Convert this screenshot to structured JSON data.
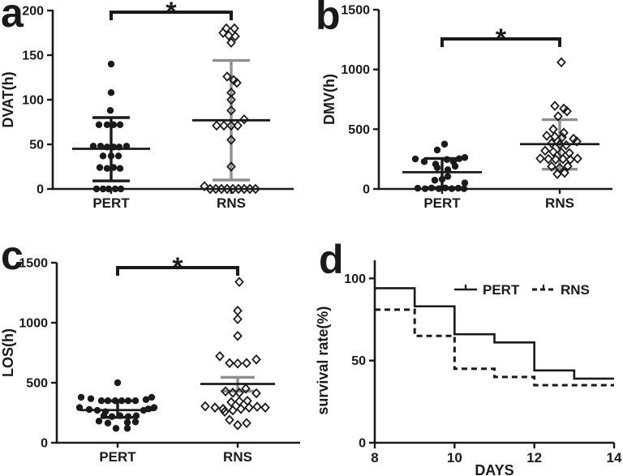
{
  "figure": {
    "background": "#ffffff",
    "ink": "#1a1a1a",
    "muted": "#8f8f8f"
  },
  "chart_data": [
    {
      "letter": "a",
      "type": "scatter",
      "ylabel": "DVAT(h)",
      "ylim": [
        0,
        200
      ],
      "yticks": [
        0,
        50,
        100,
        150,
        200
      ],
      "significance": "*",
      "legend_position": "none",
      "grid": false,
      "groups": [
        {
          "name": "PERT",
          "marker": "filled-circle",
          "mean": 45,
          "err_low": 9,
          "err_high": 80,
          "err_color": "ink",
          "points": [
            [
              0,
              140
            ],
            [
              0,
              108
            ],
            [
              -1,
              88
            ],
            [
              -15,
              72
            ],
            [
              -5,
              72
            ],
            [
              3,
              72
            ],
            [
              11,
              72
            ],
            [
              -22,
              48
            ],
            [
              -13,
              48
            ],
            [
              -5,
              47
            ],
            [
              3,
              47
            ],
            [
              10,
              47
            ],
            [
              19,
              48
            ],
            [
              -10,
              37
            ],
            [
              0,
              37
            ],
            [
              9,
              37
            ],
            [
              -14,
              24
            ],
            [
              -5,
              23
            ],
            [
              3,
              24
            ],
            [
              11,
              23
            ],
            [
              -18,
              0
            ],
            [
              -10,
              0
            ],
            [
              -3,
              0
            ],
            [
              5,
              0
            ],
            [
              12,
              0
            ]
          ]
        },
        {
          "name": "RNS",
          "marker": "open-diamond",
          "mean": 77,
          "err_low": 10,
          "err_high": 144,
          "err_color": "muted",
          "points": [
            [
              -6,
              180
            ],
            [
              4,
              180
            ],
            [
              -10,
              175
            ],
            [
              -3,
              172
            ],
            [
              5,
              171
            ],
            [
              0,
              164
            ],
            [
              -5,
              126
            ],
            [
              3,
              122
            ],
            [
              7,
              119
            ],
            [
              0,
              108
            ],
            [
              0,
              100
            ],
            [
              0,
              88
            ],
            [
              16,
              78
            ],
            [
              -18,
              71
            ],
            [
              -9,
              71
            ],
            [
              0,
              71
            ],
            [
              8,
              71
            ],
            [
              0,
              55
            ],
            [
              0,
              25
            ],
            [
              -33,
              3
            ],
            [
              -26,
              0
            ],
            [
              -19,
              0
            ],
            [
              -12,
              0
            ],
            [
              -5,
              0
            ],
            [
              2,
              0
            ],
            [
              9,
              0
            ],
            [
              16,
              0
            ],
            [
              23,
              0
            ],
            [
              30,
              0
            ]
          ]
        }
      ]
    },
    {
      "letter": "b",
      "type": "scatter",
      "ylabel": "DMV(h)",
      "ylim": [
        0,
        1500
      ],
      "yticks": [
        0,
        500,
        1000,
        1500
      ],
      "significance": "*",
      "legend_position": "none",
      "grid": false,
      "groups": [
        {
          "name": "PERT",
          "marker": "filled-circle",
          "mean": 140,
          "err_low": 10,
          "err_high": 255,
          "err_color": "ink",
          "points": [
            [
              3,
              375
            ],
            [
              -6,
              326
            ],
            [
              -33,
              251
            ],
            [
              -22,
              229
            ],
            [
              -8,
              208
            ],
            [
              6,
              246
            ],
            [
              14,
              229
            ],
            [
              21,
              253
            ],
            [
              28,
              263
            ],
            [
              -6,
              178
            ],
            [
              7,
              161
            ],
            [
              16,
              190
            ],
            [
              -9,
              73
            ],
            [
              0,
              81
            ],
            [
              7,
              104
            ],
            [
              28,
              50
            ],
            [
              -30,
              6
            ],
            [
              -21,
              2
            ],
            [
              -13,
              8
            ],
            [
              -4,
              2
            ],
            [
              4,
              8
            ],
            [
              12,
              2
            ],
            [
              20,
              6
            ],
            [
              27,
              2
            ]
          ]
        },
        {
          "name": "RNS",
          "marker": "open-diamond",
          "mean": 375,
          "err_low": 165,
          "err_high": 580,
          "err_color": "muted",
          "points": [
            [
              2,
              1060
            ],
            [
              -6,
              695
            ],
            [
              5,
              672
            ],
            [
              9,
              650
            ],
            [
              -2,
              608
            ],
            [
              -8,
              500
            ],
            [
              5,
              470
            ],
            [
              -16,
              445
            ],
            [
              -6,
              438
            ],
            [
              3,
              432
            ],
            [
              17,
              420
            ],
            [
              21,
              398
            ],
            [
              -10,
              382
            ],
            [
              0,
              372
            ],
            [
              8,
              366
            ],
            [
              -18,
              320
            ],
            [
              -8,
              310
            ],
            [
              2,
              305
            ],
            [
              12,
              300
            ],
            [
              -24,
              255
            ],
            [
              -14,
              250
            ],
            [
              -5,
              247
            ],
            [
              4,
              250
            ],
            [
              13,
              246
            ],
            [
              22,
              254
            ],
            [
              -10,
              188
            ],
            [
              0,
              176
            ],
            [
              10,
              190
            ],
            [
              -3,
              125
            ],
            [
              6,
              135
            ]
          ]
        }
      ]
    },
    {
      "letter": "c",
      "type": "scatter",
      "ylabel": "LOS(h)",
      "ylim": [
        0,
        1500
      ],
      "yticks": [
        0,
        500,
        1000,
        1500
      ],
      "significance": "*",
      "legend_position": "none",
      "grid": false,
      "groups": [
        {
          "name": "PERT",
          "marker": "filled-circle",
          "mean": 272,
          "err_low": 212,
          "err_high": 350,
          "err_color": "ink",
          "points": [
            [
              0,
              500
            ],
            [
              -45,
              379
            ],
            [
              -33,
              367
            ],
            [
              42,
              379
            ],
            [
              35,
              360
            ],
            [
              -20,
              350
            ],
            [
              -12,
              350
            ],
            [
              -3,
              350
            ],
            [
              5,
              350
            ],
            [
              13,
              350
            ],
            [
              22,
              350
            ],
            [
              -47,
              293
            ],
            [
              -35,
              277
            ],
            [
              45,
              293
            ],
            [
              38,
              282
            ],
            [
              -25,
              270
            ],
            [
              -15,
              259
            ],
            [
              32,
              270
            ],
            [
              -17,
              225
            ],
            [
              -7,
              218
            ],
            [
              3,
              225
            ],
            [
              13,
              218
            ],
            [
              23,
              225
            ],
            [
              -23,
              180
            ],
            [
              -12,
              164
            ],
            [
              12,
              169
            ],
            [
              22,
              174
            ],
            [
              -2,
              120
            ],
            [
              12,
              120
            ]
          ]
        },
        {
          "name": "RNS",
          "marker": "open-diamond",
          "mean": 490,
          "err_low": 430,
          "err_high": 545,
          "err_color": "muted",
          "points": [
            [
              2,
              1340
            ],
            [
              0,
              1100
            ],
            [
              0,
              1030
            ],
            [
              0,
              890
            ],
            [
              -22,
              721
            ],
            [
              -10,
              664
            ],
            [
              0,
              660
            ],
            [
              11,
              664
            ],
            [
              23,
              694
            ],
            [
              -15,
              428
            ],
            [
              -6,
              417
            ],
            [
              2,
              417
            ],
            [
              10,
              451
            ],
            [
              23,
              412
            ],
            [
              -40,
              304
            ],
            [
              -28,
              293
            ],
            [
              -18,
              282
            ],
            [
              -8,
              338
            ],
            [
              2,
              345
            ],
            [
              12,
              349
            ],
            [
              -16,
              259
            ],
            [
              -6,
              270
            ],
            [
              4,
              282
            ],
            [
              14,
              293
            ],
            [
              24,
              300
            ],
            [
              34,
              293
            ],
            [
              -10,
              191
            ],
            [
              0,
              147
            ],
            [
              11,
              164
            ]
          ]
        }
      ]
    },
    {
      "letter": "d",
      "type": "step-line",
      "xlabel": "DAYS",
      "ylabel": "survival rate(%)",
      "xlim": [
        8,
        14
      ],
      "xticks": [
        8,
        10,
        12,
        14
      ],
      "ylim": [
        0,
        100
      ],
      "yticks": [
        0,
        50,
        100
      ],
      "legend_position": "top-inside",
      "grid": false,
      "series": [
        {
          "name": "PERT",
          "line": "solid",
          "steps": [
            [
              8,
              94
            ],
            [
              9,
              83
            ],
            [
              10,
              66
            ],
            [
              11,
              61
            ],
            [
              12,
              44
            ],
            [
              13,
              39
            ],
            [
              14,
              39
            ]
          ]
        },
        {
          "name": "RNS",
          "line": "dashed",
          "steps": [
            [
              8,
              81
            ],
            [
              9,
              65
            ],
            [
              10,
              45
            ],
            [
              11,
              40
            ],
            [
              12,
              35
            ],
            [
              14,
              35
            ]
          ]
        }
      ]
    }
  ]
}
